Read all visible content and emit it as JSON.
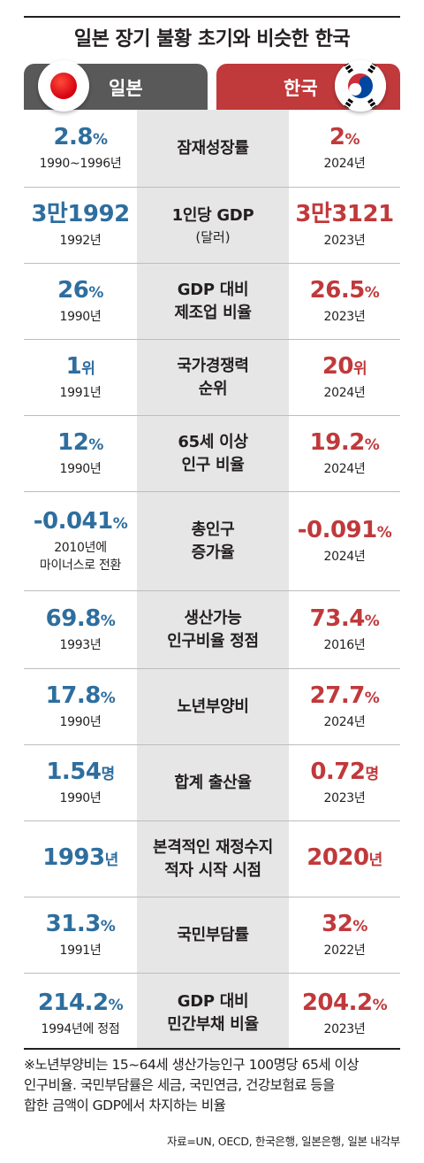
{
  "title": "일본 장기 불황 초기와 비슷한 한국",
  "header": {
    "left_label": "일본",
    "right_label": "한국"
  },
  "colors": {
    "japan_value": "#2e6e9e",
    "korea_value": "#c0393b",
    "japan_header": "#595959",
    "korea_header": "#c0393b",
    "middle_band": "#e6e6e6"
  },
  "rows": [
    {
      "mid": "잠재성장률",
      "mid2": "",
      "mid_sub": "",
      "jp_num": "2.8",
      "jp_unit": "%",
      "jp_year": "1990~1996년",
      "jp_year2": "",
      "kr_num": "2",
      "kr_unit": "%",
      "kr_year": "2024년"
    },
    {
      "mid": "1인당 GDP",
      "mid2": "",
      "mid_sub": "(달러)",
      "jp_num": "3만1992",
      "jp_unit": "",
      "jp_year": "1992년",
      "jp_year2": "",
      "kr_num": "3만3121",
      "kr_unit": "",
      "kr_year": "2023년"
    },
    {
      "mid": "GDP 대비",
      "mid2": "제조업 비율",
      "mid_sub": "",
      "jp_num": "26",
      "jp_unit": "%",
      "jp_year": "1990년",
      "jp_year2": "",
      "kr_num": "26.5",
      "kr_unit": "%",
      "kr_year": "2023년"
    },
    {
      "mid": "국가경쟁력",
      "mid2": "순위",
      "mid_sub": "",
      "jp_num": "1",
      "jp_unit": "위",
      "jp_year": "1991년",
      "jp_year2": "",
      "kr_num": "20",
      "kr_unit": "위",
      "kr_year": "2024년"
    },
    {
      "mid": "65세 이상",
      "mid2": "인구 비율",
      "mid_sub": "",
      "jp_num": "12",
      "jp_unit": "%",
      "jp_year": "1990년",
      "jp_year2": "",
      "kr_num": "19.2",
      "kr_unit": "%",
      "kr_year": "2024년"
    },
    {
      "mid": "총인구",
      "mid2": "증가율",
      "mid_sub": "",
      "jp_num": "-0.041",
      "jp_unit": "%",
      "jp_year": "2010년에",
      "jp_year2": "마이너스로 전환",
      "kr_num": "-0.091",
      "kr_unit": "%",
      "kr_year": "2024년"
    },
    {
      "mid": "생산가능",
      "mid2": "인구비율 정점",
      "mid_sub": "",
      "jp_num": "69.8",
      "jp_unit": "%",
      "jp_year": "1993년",
      "jp_year2": "",
      "kr_num": "73.4",
      "kr_unit": "%",
      "kr_year": "2016년"
    },
    {
      "mid": "노년부양비",
      "mid2": "",
      "mid_sub": "",
      "jp_num": "17.8",
      "jp_unit": "%",
      "jp_year": "1990년",
      "jp_year2": "",
      "kr_num": "27.7",
      "kr_unit": "%",
      "kr_year": "2024년"
    },
    {
      "mid": "합계 출산율",
      "mid2": "",
      "mid_sub": "",
      "jp_num": "1.54",
      "jp_unit": "명",
      "jp_year": "1990년",
      "jp_year2": "",
      "kr_num": "0.72",
      "kr_unit": "명",
      "kr_year": "2023년"
    },
    {
      "mid": "본격적인 재정수지",
      "mid2": "적자 시작 시점",
      "mid_sub": "",
      "jp_num": "1993",
      "jp_unit": "년",
      "jp_year": "",
      "jp_year2": "",
      "kr_num": "2020",
      "kr_unit": "년",
      "kr_year": ""
    },
    {
      "mid": "국민부담률",
      "mid2": "",
      "mid_sub": "",
      "jp_num": "31.3",
      "jp_unit": "%",
      "jp_year": "1991년",
      "jp_year2": "",
      "kr_num": "32",
      "kr_unit": "%",
      "kr_year": "2022년"
    },
    {
      "mid": "GDP 대비",
      "mid2": "민간부채 비율",
      "mid_sub": "",
      "jp_num": "214.2",
      "jp_unit": "%",
      "jp_year": "1994년에 정점",
      "jp_year2": "",
      "kr_num": "204.2",
      "kr_unit": "%",
      "kr_year": "2023년"
    }
  ],
  "note_lines": [
    "※노년부양비는 15~64세 생산가능인구 100명당 65세 이상",
    "인구비율. 국민부담률은 세금, 국민연금, 건강보험료 등을",
    "합한 금액이 GDP에서 차지하는 비율"
  ],
  "source": "자료=UN, OECD, 한국은행, 일본은행, 일본 내각부"
}
